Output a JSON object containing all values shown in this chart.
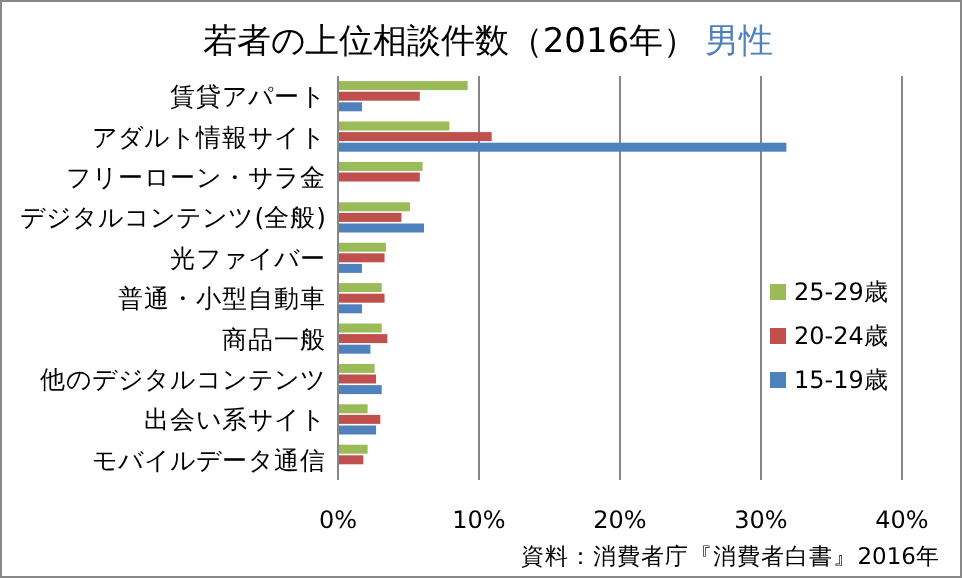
{
  "chart_data": {
    "type": "bar",
    "orientation": "horizontal",
    "title": "若者の上位相談件数（2016年）",
    "subtitle": "男性",
    "categories": [
      "賃貸アパート",
      "アダルト情報サイト",
      "フリーローン・サラ金",
      "デジタルコンテンツ(全般)",
      "光ファイバー",
      "普通・小型自動車",
      "商品一般",
      "他のデジタルコンテンツ",
      "出会い系サイト",
      "モバイルデータ通信"
    ],
    "series": [
      {
        "name": "25-29歳",
        "color": "#9bbb59",
        "values": [
          9.2,
          7.9,
          6.0,
          5.1,
          3.4,
          3.1,
          3.1,
          2.6,
          2.1,
          2.1
        ]
      },
      {
        "name": "20-24歳",
        "color": "#c0504d",
        "values": [
          5.8,
          10.9,
          5.8,
          4.5,
          3.3,
          3.3,
          3.5,
          2.7,
          3.0,
          1.8
        ]
      },
      {
        "name": "15-19歳",
        "color": "#4f81bd",
        "values": [
          1.7,
          31.8,
          null,
          6.1,
          1.7,
          1.7,
          2.3,
          3.1,
          2.7,
          null
        ]
      }
    ],
    "xlim": [
      0,
      40
    ],
    "xticks": [
      {
        "value": 0,
        "label": "0%"
      },
      {
        "value": 10,
        "label": "10%"
      },
      {
        "value": 20,
        "label": "20%"
      },
      {
        "value": 30,
        "label": "30%"
      },
      {
        "value": 40,
        "label": "40%"
      }
    ],
    "grid": "x",
    "legend": "right",
    "annotations": [
      "資料：消費者庁『消費者白書』2016年"
    ]
  }
}
